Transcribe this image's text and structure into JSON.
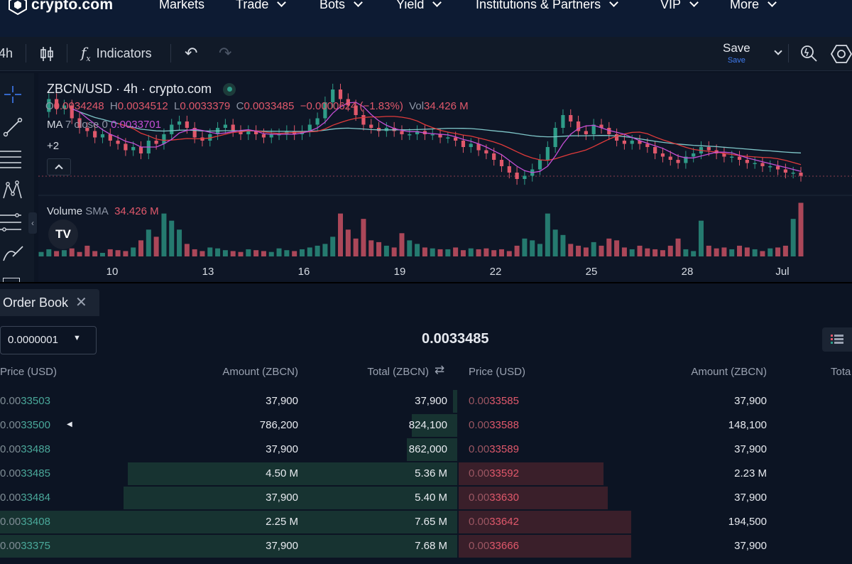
{
  "brand": {
    "name": "crypto.com"
  },
  "nav": {
    "items": [
      {
        "label": "Markets",
        "dropdown": false
      },
      {
        "label": "Trade",
        "dropdown": true
      },
      {
        "label": "Bots",
        "dropdown": true
      },
      {
        "label": "Yield",
        "dropdown": true
      },
      {
        "label": "Institutions & Partners",
        "dropdown": true
      },
      {
        "label": "VIP",
        "dropdown": true
      },
      {
        "label": "More",
        "dropdown": true
      }
    ]
  },
  "toolbar": {
    "interval": "4h",
    "indicators_label": "Indicators",
    "save_label": "Save",
    "save_sub": "Save"
  },
  "chart": {
    "symbol_line": "ZBCN/USD · 4h · crypto.com",
    "ohlc": {
      "o_label": "O",
      "o": "0.0034248",
      "h_label": "H",
      "h": "0.0034512",
      "l_label": "L",
      "l": "0.0033379",
      "c_label": "C",
      "c": "0.0033485",
      "change": "−0.0000624 (−1.83%)",
      "vol_label": "Vol",
      "vol": "34.426 M"
    },
    "ma": {
      "label": "MA",
      "params": "7 close 0",
      "value": "0.0033701"
    },
    "more_indicators": "+2",
    "volume_pane": {
      "label": "Volume",
      "sma_label": "SMA",
      "value": "34.426 M"
    },
    "x_ticks": [
      "10",
      "13",
      "16",
      "19",
      "22",
      "25",
      "28",
      "Jul"
    ],
    "colors": {
      "up": "#2e9c88",
      "down": "#e0586b",
      "ma7": "#c44fd6",
      "ma_mid": "#e03a3a",
      "ma_long": "#7fc7c9"
    },
    "price_series": [
      0.0053,
      0.0057,
      0.0054,
      0.0055,
      0.0051,
      0.0048,
      0.0047,
      0.0045,
      0.0046,
      0.0044,
      0.0043,
      0.0041,
      0.0042,
      0.004,
      0.0044,
      0.0043,
      0.0046,
      0.0049,
      0.005,
      0.0048,
      0.0045,
      0.0044,
      0.0046,
      0.0048,
      0.0049,
      0.0047,
      0.0046,
      0.0047,
      0.0046,
      0.0045,
      0.0046,
      0.0046,
      0.0047,
      0.0046,
      0.0047,
      0.0049,
      0.0051,
      0.0056,
      0.006,
      0.0057,
      0.0055,
      0.0052,
      0.0049,
      0.0048,
      0.0047,
      0.0048,
      0.0047,
      0.0046,
      0.0046,
      0.0047,
      0.0046,
      0.0046,
      0.0045,
      0.0045,
      0.0044,
      0.0042,
      0.0043,
      0.0041,
      0.004,
      0.0038,
      0.0036,
      0.0034,
      0.0032,
      0.0033,
      0.0035,
      0.0038,
      0.0042,
      0.0048,
      0.0052,
      0.005,
      0.0047,
      0.0046,
      0.0049,
      0.0048,
      0.0046,
      0.0044,
      0.0043,
      0.0044,
      0.0043,
      0.0042,
      0.004,
      0.0039,
      0.0038,
      0.0037,
      0.0039,
      0.004,
      0.0042,
      0.0041,
      0.004,
      0.0039,
      0.0039,
      0.0038,
      0.0037,
      0.0037,
      0.0036,
      0.0036,
      0.0035,
      0.0034,
      0.0034,
      0.0033
    ],
    "volume_series": [
      5,
      8,
      6,
      7,
      9,
      5,
      12,
      6,
      4,
      8,
      7,
      6,
      10,
      18,
      30,
      22,
      48,
      40,
      30,
      14,
      8,
      6,
      10,
      9,
      7,
      6,
      5,
      8,
      7,
      6,
      5,
      9,
      7,
      6,
      8,
      10,
      12,
      14,
      22,
      48,
      30,
      20,
      42,
      18,
      16,
      12,
      10,
      26,
      18,
      14,
      10,
      9,
      8,
      8,
      10,
      7,
      9,
      8,
      9,
      7,
      8,
      6,
      12,
      20,
      18,
      14,
      48,
      30,
      24,
      14,
      12,
      10,
      16,
      12,
      20,
      18,
      10,
      8,
      12,
      9,
      8,
      7,
      12,
      20,
      8,
      6,
      40,
      12,
      9,
      10,
      8,
      12,
      10,
      8,
      6,
      9,
      10,
      12,
      42,
      60,
      14,
      10
    ]
  },
  "orderbook": {
    "tab_label": "Order Book",
    "precision": "0.0000001",
    "mid_price": "0.0033485",
    "bid_headers": {
      "price": "Price (USD)",
      "amount": "Amount (ZBCN)",
      "total": "Total (ZBCN)"
    },
    "ask_headers": {
      "price": "Price (USD)",
      "amount": "Amount (ZBCN)",
      "total": "Tota"
    },
    "bids": [
      {
        "price_dim": "0.00",
        "price": "33503",
        "amount": "37,900",
        "total": "37,900",
        "depth": 0.01,
        "marker": ""
      },
      {
        "price_dim": "0.00",
        "price": "33500",
        "amount": "786,200",
        "total": "824,100",
        "depth": 0.1,
        "marker": "◀"
      },
      {
        "price_dim": "0.00",
        "price": "33488",
        "amount": "37,900",
        "total": "862,000",
        "depth": 0.11,
        "marker": ""
      },
      {
        "price_dim": "0.00",
        "price": "33485",
        "amount": "4.50 M",
        "total": "5.36 M",
        "depth": 0.72,
        "marker": ""
      },
      {
        "price_dim": "0.00",
        "price": "33484",
        "amount": "37,900",
        "total": "5.40 M",
        "depth": 0.73,
        "marker": ""
      },
      {
        "price_dim": "0.00",
        "price": "33408",
        "amount": "2.25 M",
        "total": "7.65 M",
        "depth": 1.0,
        "marker": ""
      },
      {
        "price_dim": "0.00",
        "price": "33375",
        "amount": "37,900",
        "total": "7.68 M",
        "depth": 1.0,
        "marker": ""
      }
    ],
    "asks": [
      {
        "price_dim": "0.00",
        "price": "33585",
        "amount": "37,900",
        "depth": 0.0
      },
      {
        "price_dim": "0.00",
        "price": "33588",
        "amount": "148,100",
        "depth": 0.0
      },
      {
        "price_dim": "0.00",
        "price": "33589",
        "amount": "37,900",
        "depth": 0.0
      },
      {
        "price_dim": "0.00",
        "price": "33592",
        "amount": "2.23 M",
        "depth": 0.37
      },
      {
        "price_dim": "0.00",
        "price": "33630",
        "amount": "37,900",
        "depth": 0.38
      },
      {
        "price_dim": "0.00",
        "price": "33642",
        "amount": "194,500",
        "depth": 0.44
      },
      {
        "price_dim": "0.00",
        "price": "33666",
        "amount": "37,900",
        "depth": 0.44
      }
    ]
  }
}
